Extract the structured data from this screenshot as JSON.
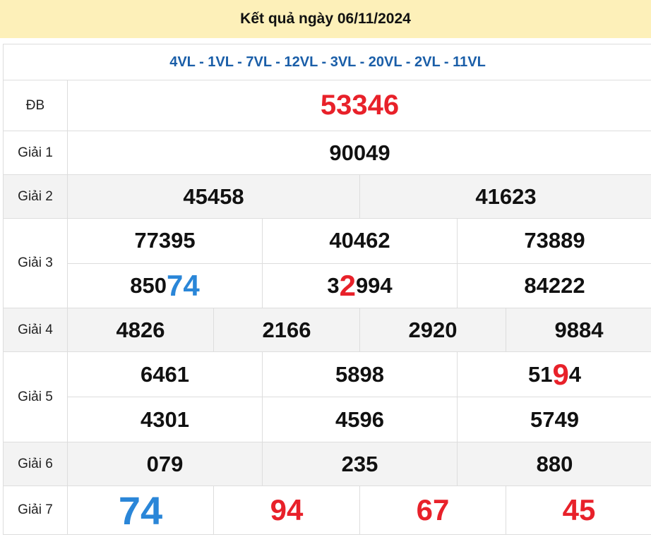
{
  "header": {
    "title": "Kết quả ngày 06/11/2024"
  },
  "colors": {
    "header_bg": "#fdf0b9",
    "codes": "#1a5ea8",
    "red": "#e8212a",
    "blue": "#2a86d8",
    "row_gray": "#f3f3f3"
  },
  "codes": "4VL - 1VL - 7VL - 12VL - 3VL - 20VL - 2VL - 11VL",
  "prizes": [
    {
      "label": "ĐB",
      "gray": false,
      "rows": [
        [
          [
            {
              "t": "53346",
              "c": "red db"
            }
          ]
        ]
      ]
    },
    {
      "label": "Giải 1",
      "gray": false,
      "rows": [
        [
          [
            {
              "t": "90049",
              "c": ""
            }
          ]
        ]
      ]
    },
    {
      "label": "Giải 2",
      "gray": true,
      "rows": [
        [
          [
            {
              "t": "45458",
              "c": ""
            }
          ],
          [
            {
              "t": "41623",
              "c": ""
            }
          ]
        ]
      ]
    },
    {
      "label": "Giải 3",
      "gray": false,
      "rows": [
        [
          [
            {
              "t": "77395",
              "c": ""
            }
          ],
          [
            {
              "t": "40462",
              "c": ""
            }
          ],
          [
            {
              "t": "73889",
              "c": ""
            }
          ]
        ],
        [
          [
            {
              "t": "850",
              "c": ""
            },
            {
              "t": "74",
              "c": "blue big"
            }
          ],
          [
            {
              "t": "3",
              "c": ""
            },
            {
              "t": "2",
              "c": "red big"
            },
            {
              "t": "994",
              "c": ""
            }
          ],
          [
            {
              "t": "84222",
              "c": ""
            }
          ]
        ]
      ]
    },
    {
      "label": "Giải 4",
      "gray": true,
      "rows": [
        [
          [
            {
              "t": "4826",
              "c": ""
            }
          ],
          [
            {
              "t": "2166",
              "c": ""
            }
          ],
          [
            {
              "t": "2920",
              "c": ""
            }
          ],
          [
            {
              "t": "9884",
              "c": ""
            }
          ]
        ]
      ]
    },
    {
      "label": "Giải 5",
      "gray": false,
      "rows": [
        [
          [
            {
              "t": "6461",
              "c": ""
            }
          ],
          [
            {
              "t": "5898",
              "c": ""
            }
          ],
          [
            {
              "t": "51",
              "c": ""
            },
            {
              "t": "9",
              "c": "red big"
            },
            {
              "t": "4",
              "c": ""
            }
          ]
        ],
        [
          [
            {
              "t": "4301",
              "c": ""
            }
          ],
          [
            {
              "t": "4596",
              "c": ""
            }
          ],
          [
            {
              "t": "5749",
              "c": ""
            }
          ]
        ]
      ]
    },
    {
      "label": "Giải 6",
      "gray": true,
      "rows": [
        [
          [
            {
              "t": "079",
              "c": ""
            }
          ],
          [
            {
              "t": "235",
              "c": ""
            }
          ],
          [
            {
              "t": "880",
              "c": ""
            }
          ]
        ]
      ]
    },
    {
      "label": "Giải 7",
      "gray": false,
      "rows": [
        [
          [
            {
              "t": "74",
              "c": "blue huge"
            }
          ],
          [
            {
              "t": "94",
              "c": "red big"
            }
          ],
          [
            {
              "t": "67",
              "c": "red big"
            }
          ],
          [
            {
              "t": "45",
              "c": "red big"
            }
          ]
        ]
      ]
    }
  ]
}
